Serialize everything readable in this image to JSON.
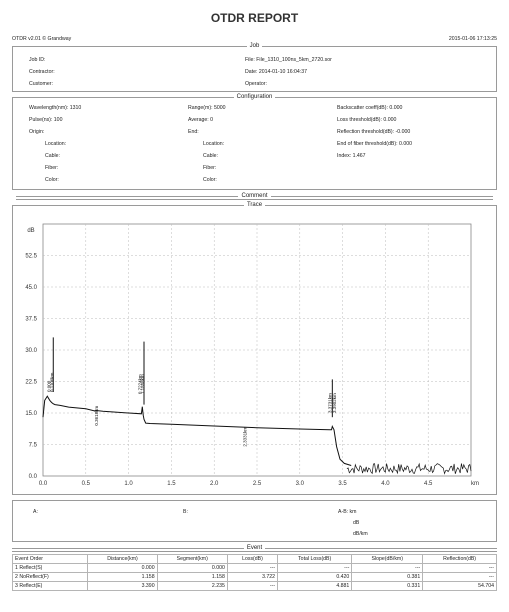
{
  "title": "OTDR REPORT",
  "meta": {
    "software": "OTDR v2.01 © Grandway",
    "datetime": "2015-01-06 17:13:25"
  },
  "job": {
    "header": "Job",
    "job_id": "Job ID:",
    "contractor": "Contractor:",
    "customer": "Customer:",
    "file": "File: File_1310_100ns_5km_2720.sor",
    "date": "Date: 2014-01-10 16:04:37",
    "operator": "Operator:"
  },
  "config": {
    "header": "Configuration",
    "wavelength": "Wavelength(nm): 1310",
    "pulse": "Pulse(ns): 100",
    "origin": "Origin:",
    "origin_location": "Location:",
    "origin_cable": "Cable:",
    "origin_fiber": "Fiber:",
    "origin_color": "Color:",
    "range": "Range(m): 5000",
    "average": "Average: 0",
    "end": "End:",
    "end_location": "Location:",
    "end_cable": "Cable:",
    "end_fiber": "Fiber:",
    "end_color": "Color:",
    "backscatter": "Backscatter coeff(dB): 0.000",
    "loss_threshold": "Loss threshold(dB): 0.000",
    "reflection_threshold": "Reflection threshold(dB): -0.000",
    "eof_threshold": "End of fiber threshold(dB): 0.000",
    "index": "Index: 1.467"
  },
  "comment": {
    "header": "Comment"
  },
  "trace": {
    "header": "Trace"
  },
  "chart_data": {
    "type": "line",
    "title": "",
    "ylabel": "dB",
    "xlabel": "km",
    "xlim": [
      0.0,
      5.0
    ],
    "ylim": [
      0.0,
      60.0
    ],
    "x_ticks": [
      "0.0",
      "0.5",
      "1.0",
      "1.5",
      "2.0",
      "2.5",
      "3.0",
      "3.5",
      "4.0",
      "4.5"
    ],
    "y_ticks": [
      "0.0",
      "7.5",
      "15.0",
      "22.5",
      "30.0",
      "37.5",
      "45.0",
      "52.5"
    ],
    "grid": true,
    "series": [
      {
        "x": [
          0.0,
          0.02,
          0.05,
          0.08,
          0.1,
          0.12,
          0.14,
          0.2,
          0.3,
          0.5,
          0.6,
          0.62,
          0.7,
          1.0,
          1.15,
          1.16,
          1.17,
          1.18,
          1.2,
          1.25,
          1.5,
          2.0,
          2.5,
          3.0,
          3.35,
          3.37,
          3.38,
          3.4,
          3.43,
          3.47,
          3.52,
          3.6
        ],
        "y": [
          14.0,
          18.0,
          19.0,
          18.0,
          17.5,
          17.2,
          17.0,
          16.8,
          16.4,
          16.0,
          15.5,
          15.6,
          15.4,
          15.0,
          14.8,
          16.5,
          14.5,
          13.5,
          12.6,
          12.5,
          12.3,
          11.9,
          11.5,
          11.2,
          11.0,
          11.0,
          11.8,
          11.0,
          7.0,
          4.0,
          3.0,
          2.5
        ]
      }
    ],
    "spikes": [
      {
        "x": 0.12,
        "top": 33.0,
        "base": 20.0
      },
      {
        "x": 1.18,
        "top": 32.0,
        "base": 17.0
      },
      {
        "x": 3.38,
        "top": 23.0,
        "base": 14.0
      }
    ],
    "noise_range": [
      3.55,
      5.0
    ],
    "noise_level": [
      0.5,
      3.0
    ],
    "markers": [
      {
        "x": 0.09,
        "y": 20.0,
        "label": "0.000"
      },
      {
        "x": 0.12,
        "y": 20.0,
        "label": "0.1100km"
      },
      {
        "x": 0.64,
        "y": 12.0,
        "label": "0.3618km"
      },
      {
        "x": 1.15,
        "y": 19.5,
        "label": "0.7224km"
      },
      {
        "x": 1.18,
        "y": 19.5,
        "label": "1.1558km"
      },
      {
        "x": 2.38,
        "y": 7.0,
        "label": "2.3331km"
      },
      {
        "x": 3.37,
        "y": 15.0,
        "label": "3.3731km"
      },
      {
        "x": 3.42,
        "y": 15.0,
        "label": "3.3902km"
      }
    ]
  },
  "cursor": {
    "a_label": "A:",
    "b_label": "B:",
    "ab_label": "A-B: km",
    "db_label": "dB",
    "dbkm_label": "dB/km"
  },
  "event": {
    "header": "Event",
    "columns": [
      "Event Order",
      "Distance(km)",
      "Segment(km)",
      "Loss(dB)",
      "Total Loss(dB)",
      "Slope(dB/km)",
      "Reflection(dB)"
    ],
    "rows": [
      [
        "1 Reflect(S)",
        "0.000",
        "0.000",
        "---",
        "---",
        "---",
        "---"
      ],
      [
        "2 NoReflect(F)",
        "1.158",
        "1.158",
        "3.722",
        "0.420",
        "0.381",
        "---"
      ],
      [
        "3 Reflect(E)",
        "3.390",
        "2.235",
        "---",
        "4.881",
        "0.331",
        "54.704"
      ]
    ]
  }
}
